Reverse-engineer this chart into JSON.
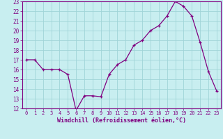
{
  "x": [
    0,
    1,
    2,
    3,
    4,
    5,
    6,
    7,
    8,
    9,
    10,
    11,
    12,
    13,
    14,
    15,
    16,
    17,
    18,
    19,
    20,
    21,
    22,
    23
  ],
  "y": [
    17.0,
    17.0,
    16.0,
    16.0,
    16.0,
    15.5,
    11.8,
    13.3,
    13.3,
    13.2,
    15.5,
    16.5,
    17.0,
    18.5,
    19.0,
    20.0,
    20.5,
    21.5,
    23.0,
    22.5,
    21.5,
    18.8,
    15.8,
    13.8
  ],
  "line_color": "#800080",
  "marker": "+",
  "bg_color": "#c8eef0",
  "grid_color": "#a0d4d8",
  "xlabel": "Windchill (Refroidissement éolien,°C)",
  "xlabel_color": "#800080",
  "xlim": [
    -0.5,
    23.5
  ],
  "ylim": [
    12,
    23
  ],
  "xticks": [
    0,
    1,
    2,
    3,
    4,
    5,
    6,
    7,
    8,
    9,
    10,
    11,
    12,
    13,
    14,
    15,
    16,
    17,
    18,
    19,
    20,
    21,
    22,
    23
  ],
  "yticks": [
    12,
    13,
    14,
    15,
    16,
    17,
    18,
    19,
    20,
    21,
    22,
    23
  ],
  "tick_color": "#800080",
  "spine_color": "#800080"
}
